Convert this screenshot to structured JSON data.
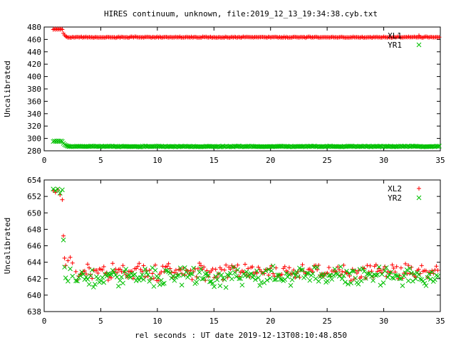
{
  "title": "HIRES continuum, unknown, file:2019_12_13_19:34:38.cyb.txt",
  "xlabel": "rel seconds : UT date 2019-12-13T08:10:48.850",
  "colors": {
    "red": "#ff0000",
    "green": "#00c000"
  },
  "chart_data": [
    {
      "type": "scatter",
      "title": "",
      "xlabel": "",
      "ylabel": "Uncalibrated",
      "xlim": [
        0,
        35
      ],
      "ylim": [
        280,
        480
      ],
      "xticks": [
        0,
        5,
        10,
        15,
        20,
        25,
        30,
        35
      ],
      "yticks": [
        280,
        300,
        320,
        340,
        360,
        380,
        400,
        420,
        440,
        460,
        480
      ],
      "legend_placement": "top-right",
      "series": [
        {
          "name": "XL1",
          "marker": "plus",
          "color": "#ff0000",
          "segments": [
            {
              "x": [
                0.8,
                0.9,
                1.0,
                1.1,
                1.2,
                1.3,
                1.4,
                1.5,
                1.6
              ],
              "y": [
                476,
                477,
                476,
                477,
                476,
                477,
                476,
                477,
                476
              ]
            },
            {
              "x": [
                1.7,
                1.8,
                1.9,
                2.0
              ],
              "y": [
                470,
                467,
                465,
                464
              ]
            },
            {
              "x_start": 2.1,
              "x_end": 34.9,
              "step": 0.1,
              "base": 463.5,
              "amp": 1.0
            }
          ]
        },
        {
          "name": "YR1",
          "marker": "x",
          "color": "#00c000",
          "segments": [
            {
              "x": [
                0.8,
                0.9,
                1.0,
                1.1,
                1.2,
                1.3,
                1.4,
                1.5,
                1.6
              ],
              "y": [
                295,
                296,
                295,
                296,
                295,
                296,
                295,
                296,
                295
              ]
            },
            {
              "x": [
                1.7,
                1.8,
                1.9,
                2.0,
                2.1
              ],
              "y": [
                292,
                290,
                289,
                288,
                287.5
              ]
            },
            {
              "x_start": 2.2,
              "x_end": 34.9,
              "step": 0.1,
              "base": 287.0,
              "amp": 0.8
            }
          ]
        }
      ]
    },
    {
      "type": "scatter",
      "title": "",
      "xlabel": "rel seconds : UT date 2019-12-13T08:10:48.850",
      "ylabel": "Uncalibrated",
      "xlim": [
        0,
        35
      ],
      "ylim": [
        638,
        654
      ],
      "xticks": [
        0,
        5,
        10,
        15,
        20,
        25,
        30,
        35
      ],
      "yticks": [
        638,
        640,
        642,
        644,
        646,
        648,
        650,
        652,
        654
      ],
      "legend_placement": "top-right",
      "series": [
        {
          "name": "XL2",
          "marker": "plus",
          "color": "#ff0000",
          "segments": [
            {
              "x": [
                0.8,
                1.0,
                1.2,
                1.4,
                1.6,
                1.7,
                1.8,
                1.9,
                2.1,
                2.3,
                2.5
              ],
              "y": [
                652.7,
                652.5,
                652.8,
                652.2,
                651.6,
                647.2,
                644.5,
                643.6,
                644.2,
                644.6,
                643.9
              ]
            },
            {
              "x_start": 2.8,
              "x_end": 34.9,
              "step": 0.13,
              "base": 642.8,
              "amp": 1.2
            }
          ]
        },
        {
          "name": "YR2",
          "marker": "x",
          "color": "#00c000",
          "segments": [
            {
              "x": [
                0.8,
                1.0,
                1.2,
                1.4,
                1.6,
                1.7,
                1.8,
                1.9,
                2.1,
                2.3,
                2.5
              ],
              "y": [
                652.9,
                652.7,
                652.9,
                652.4,
                652.8,
                646.7,
                643.4,
                642.1,
                641.7,
                643.2,
                642.3
              ]
            },
            {
              "x_start": 2.8,
              "x_end": 34.9,
              "step": 0.13,
              "base": 642.3,
              "amp": 1.4
            }
          ]
        }
      ]
    }
  ]
}
